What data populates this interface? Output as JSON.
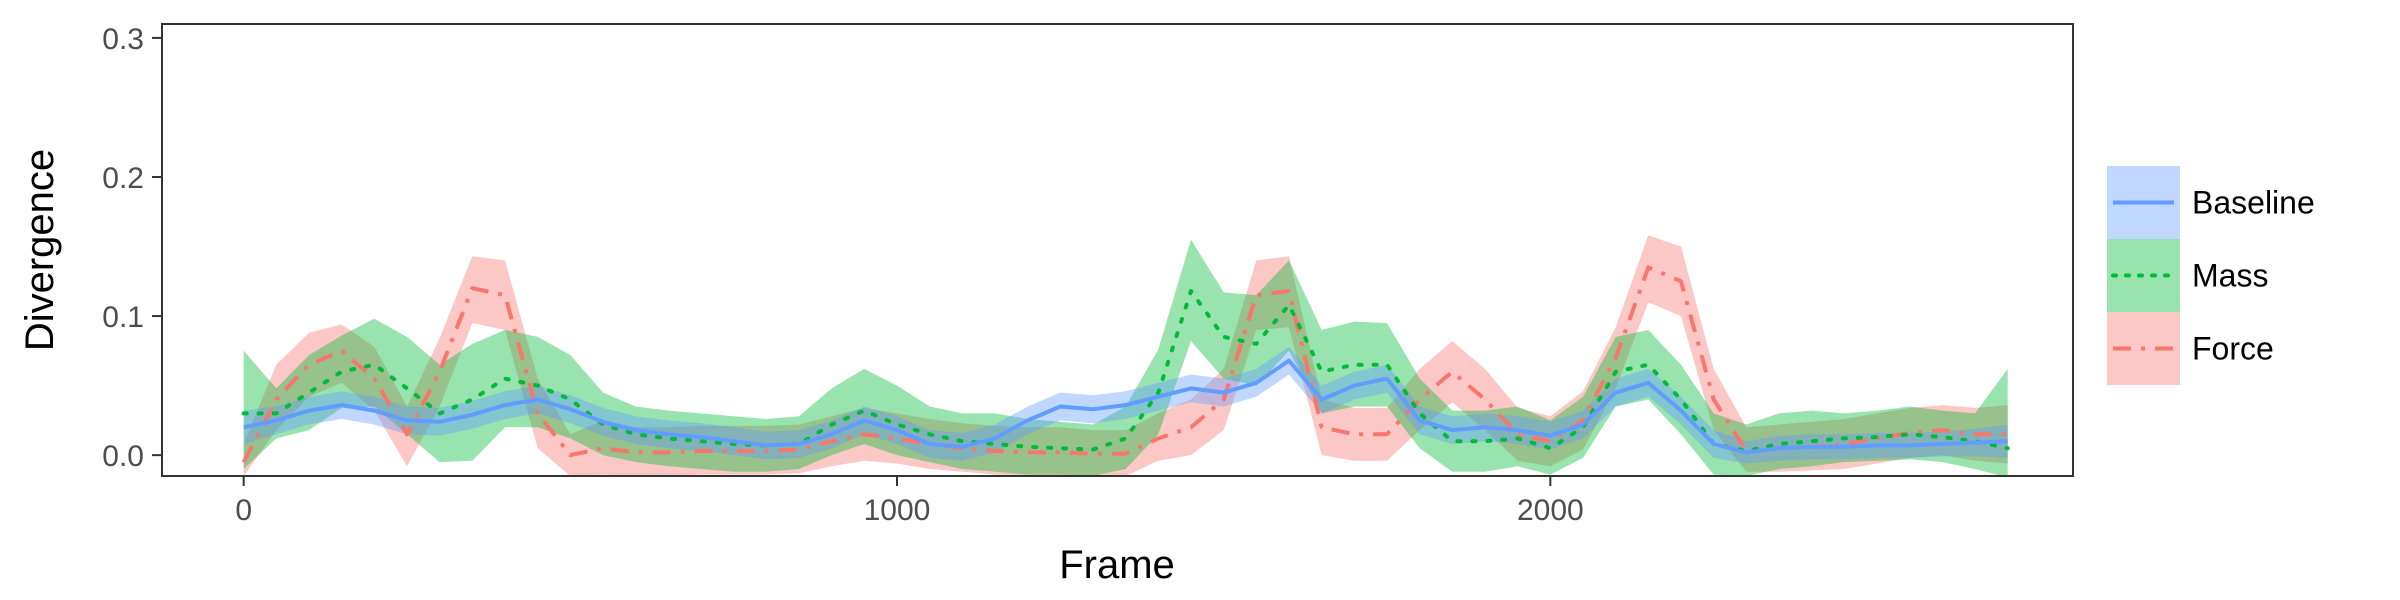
{
  "chart_data": {
    "type": "line",
    "xlabel": "Frame",
    "ylabel": "Divergence",
    "xlim": [
      -125,
      2800
    ],
    "ylim": [
      -0.015,
      0.31
    ],
    "x_ticks": [
      0,
      1000,
      2000
    ],
    "x_tick_labels": [
      "0",
      "1000",
      "2000"
    ],
    "y_ticks": [
      0,
      0.1,
      0.2,
      0.3
    ],
    "y_tick_labels": [
      "0.0",
      "0.1",
      "0.2",
      "0.3"
    ],
    "grid": false,
    "legend_position": "right",
    "series": [
      {
        "name": "Baseline",
        "color": "#619CFF",
        "line": "solid",
        "x": [
          0,
          50,
          100,
          150,
          200,
          250,
          300,
          350,
          400,
          450,
          500,
          550,
          600,
          650,
          700,
          750,
          800,
          850,
          900,
          950,
          1000,
          1050,
          1100,
          1150,
          1200,
          1250,
          1300,
          1350,
          1400,
          1450,
          1500,
          1550,
          1600,
          1650,
          1700,
          1750,
          1800,
          1850,
          1900,
          1950,
          2000,
          2050,
          2100,
          2150,
          2200,
          2250,
          2300,
          2350,
          2400,
          2450,
          2500,
          2550,
          2600,
          2650,
          2700
        ],
        "y": [
          0.02,
          0.025,
          0.032,
          0.036,
          0.032,
          0.025,
          0.024,
          0.029,
          0.036,
          0.04,
          0.033,
          0.024,
          0.018,
          0.015,
          0.013,
          0.01,
          0.007,
          0.008,
          0.015,
          0.025,
          0.018,
          0.008,
          0.006,
          0.012,
          0.025,
          0.035,
          0.033,
          0.036,
          0.042,
          0.048,
          0.045,
          0.052,
          0.068,
          0.04,
          0.05,
          0.055,
          0.025,
          0.018,
          0.02,
          0.018,
          0.014,
          0.022,
          0.045,
          0.052,
          0.032,
          0.008,
          0.002,
          0.005,
          0.006,
          0.006,
          0.007,
          0.007,
          0.008,
          0.009,
          0.01
        ],
        "ci_low": [
          0.008,
          0.015,
          0.022,
          0.026,
          0.022,
          0.015,
          0.014,
          0.019,
          0.026,
          0.03,
          0.023,
          0.014,
          0.008,
          0.005,
          0.003,
          0.0,
          -0.003,
          -0.002,
          0.005,
          0.015,
          0.008,
          -0.002,
          -0.004,
          0.002,
          0.015,
          0.025,
          0.023,
          0.026,
          0.032,
          0.038,
          0.035,
          0.042,
          0.058,
          0.03,
          0.04,
          0.045,
          0.015,
          0.008,
          0.01,
          0.008,
          0.004,
          0.012,
          0.035,
          0.042,
          0.022,
          -0.002,
          -0.006,
          -0.004,
          -0.003,
          -0.003,
          -0.002,
          -0.002,
          -0.001,
          -0.001,
          -0.002
        ],
        "ci_high": [
          0.032,
          0.035,
          0.042,
          0.046,
          0.042,
          0.035,
          0.034,
          0.039,
          0.046,
          0.05,
          0.043,
          0.034,
          0.028,
          0.025,
          0.023,
          0.02,
          0.017,
          0.018,
          0.025,
          0.035,
          0.028,
          0.018,
          0.016,
          0.022,
          0.035,
          0.045,
          0.043,
          0.046,
          0.052,
          0.058,
          0.055,
          0.062,
          0.078,
          0.05,
          0.06,
          0.065,
          0.035,
          0.028,
          0.03,
          0.028,
          0.024,
          0.032,
          0.055,
          0.062,
          0.042,
          0.018,
          0.01,
          0.014,
          0.015,
          0.015,
          0.016,
          0.016,
          0.017,
          0.019,
          0.022
        ]
      },
      {
        "name": "Mass",
        "color": "#00BA38",
        "line": "dotted",
        "x": [
          0,
          50,
          100,
          150,
          200,
          250,
          300,
          350,
          400,
          450,
          500,
          550,
          600,
          650,
          700,
          750,
          800,
          850,
          900,
          950,
          1000,
          1050,
          1100,
          1150,
          1200,
          1250,
          1300,
          1350,
          1400,
          1450,
          1500,
          1550,
          1600,
          1650,
          1700,
          1750,
          1800,
          1850,
          1900,
          1950,
          2000,
          2050,
          2100,
          2150,
          2200,
          2250,
          2300,
          2350,
          2400,
          2450,
          2500,
          2550,
          2600,
          2650,
          2700
        ],
        "y": [
          0.03,
          0.03,
          0.045,
          0.06,
          0.065,
          0.048,
          0.03,
          0.04,
          0.055,
          0.05,
          0.04,
          0.022,
          0.015,
          0.012,
          0.01,
          0.008,
          0.007,
          0.008,
          0.022,
          0.032,
          0.022,
          0.015,
          0.01,
          0.008,
          0.006,
          0.005,
          0.004,
          0.012,
          0.045,
          0.118,
          0.085,
          0.08,
          0.108,
          0.06,
          0.065,
          0.065,
          0.03,
          0.01,
          0.01,
          0.012,
          0.005,
          0.02,
          0.06,
          0.065,
          0.04,
          0.008,
          0.003,
          0.008,
          0.01,
          0.012,
          0.013,
          0.015,
          0.013,
          0.01,
          0.005
        ],
        "ci_low": [
          -0.01,
          0.012,
          0.018,
          0.034,
          0.035,
          0.015,
          -0.005,
          -0.004,
          0.02,
          0.02,
          0.012,
          0.0,
          -0.005,
          -0.008,
          -0.01,
          -0.012,
          -0.012,
          -0.01,
          0.0,
          0.008,
          0.0,
          -0.005,
          -0.01,
          -0.012,
          -0.014,
          -0.014,
          -0.015,
          -0.01,
          0.015,
          0.082,
          0.055,
          0.05,
          0.075,
          0.03,
          0.035,
          0.035,
          0.005,
          -0.012,
          -0.012,
          -0.008,
          -0.014,
          -0.002,
          0.035,
          0.04,
          0.015,
          -0.014,
          -0.015,
          -0.01,
          -0.008,
          -0.005,
          -0.004,
          -0.003,
          -0.005,
          -0.01,
          -0.016
        ],
        "ci_high": [
          0.075,
          0.048,
          0.072,
          0.086,
          0.098,
          0.085,
          0.065,
          0.08,
          0.09,
          0.085,
          0.072,
          0.045,
          0.035,
          0.032,
          0.03,
          0.028,
          0.026,
          0.028,
          0.048,
          0.062,
          0.05,
          0.035,
          0.03,
          0.03,
          0.026,
          0.024,
          0.022,
          0.035,
          0.076,
          0.155,
          0.117,
          0.115,
          0.14,
          0.09,
          0.096,
          0.095,
          0.055,
          0.032,
          0.032,
          0.035,
          0.025,
          0.042,
          0.085,
          0.09,
          0.065,
          0.03,
          0.022,
          0.03,
          0.032,
          0.03,
          0.032,
          0.035,
          0.032,
          0.03,
          0.062
        ]
      },
      {
        "name": "Force",
        "color": "#F8766D",
        "line": "dashdot",
        "x": [
          0,
          50,
          100,
          150,
          200,
          250,
          300,
          350,
          400,
          450,
          500,
          550,
          600,
          650,
          700,
          750,
          800,
          850,
          900,
          950,
          1000,
          1050,
          1100,
          1150,
          1200,
          1250,
          1300,
          1350,
          1400,
          1450,
          1500,
          1550,
          1600,
          1650,
          1700,
          1750,
          1800,
          1850,
          1900,
          1950,
          2000,
          2050,
          2100,
          2150,
          2200,
          2250,
          2300,
          2350,
          2400,
          2450,
          2500,
          2550,
          2600,
          2650,
          2700
        ],
        "y": [
          -0.005,
          0.04,
          0.065,
          0.075,
          0.055,
          0.015,
          0.06,
          0.12,
          0.115,
          0.03,
          0.0,
          0.005,
          0.002,
          0.002,
          0.003,
          0.003,
          0.003,
          0.004,
          0.01,
          0.015,
          0.012,
          0.008,
          0.005,
          0.003,
          0.002,
          0.002,
          0.001,
          0.001,
          0.012,
          0.02,
          0.04,
          0.115,
          0.118,
          0.02,
          0.015,
          0.015,
          0.04,
          0.06,
          0.04,
          0.015,
          0.01,
          0.025,
          0.07,
          0.135,
          0.125,
          0.04,
          0.003,
          0.005,
          0.006,
          0.008,
          0.012,
          0.016,
          0.018,
          0.015,
          0.015
        ],
        "ci_low": [
          -0.015,
          0.018,
          0.042,
          0.052,
          0.032,
          -0.008,
          0.035,
          0.095,
          0.09,
          0.005,
          -0.015,
          -0.014,
          -0.015,
          -0.015,
          -0.014,
          -0.014,
          -0.014,
          -0.013,
          -0.008,
          -0.004,
          -0.006,
          -0.01,
          -0.012,
          -0.014,
          -0.015,
          -0.015,
          -0.015,
          -0.015,
          -0.004,
          0.0,
          0.018,
          0.09,
          0.092,
          0.0,
          -0.004,
          -0.004,
          0.018,
          0.038,
          0.018,
          -0.004,
          -0.008,
          0.004,
          0.048,
          0.11,
          0.1,
          0.018,
          -0.012,
          -0.012,
          -0.011,
          -0.01,
          -0.006,
          -0.002,
          0.0,
          -0.004,
          -0.006
        ],
        "ci_high": [
          0.008,
          0.065,
          0.088,
          0.094,
          0.078,
          0.035,
          0.084,
          0.143,
          0.14,
          0.055,
          0.015,
          0.025,
          0.02,
          0.02,
          0.021,
          0.021,
          0.021,
          0.022,
          0.028,
          0.034,
          0.03,
          0.026,
          0.023,
          0.021,
          0.02,
          0.02,
          0.018,
          0.018,
          0.03,
          0.04,
          0.062,
          0.14,
          0.143,
          0.04,
          0.034,
          0.034,
          0.062,
          0.082,
          0.062,
          0.034,
          0.028,
          0.046,
          0.092,
          0.158,
          0.15,
          0.062,
          0.02,
          0.022,
          0.024,
          0.026,
          0.03,
          0.034,
          0.036,
          0.034,
          0.036
        ]
      }
    ]
  }
}
